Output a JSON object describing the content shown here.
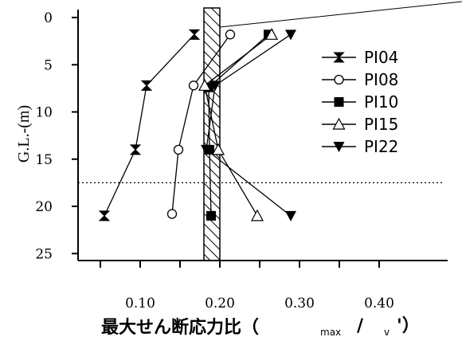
{
  "chart_data": {
    "type": "line",
    "title": "",
    "xlabel": "最大せん断応力比（",
    "xlabel_sub1": "max",
    "xlabel_slash": "/",
    "xlabel_sub2": "v",
    "xlabel_end": "'）",
    "ylabel": "G.L.-(m)",
    "xlim": [
      0.05,
      0.4
    ],
    "ylim": [
      0,
      26
    ],
    "y_inverted": true,
    "x_ticks": [
      0.1,
      0.2,
      0.3,
      0.4
    ],
    "x_tick_labels": [
      "0.10",
      "0.20",
      "0.30",
      "0.40"
    ],
    "y_ticks": [
      0,
      5,
      10,
      15,
      20,
      25
    ],
    "y_tick_labels": [
      "0",
      "5",
      "10",
      "15",
      "20",
      "25"
    ],
    "grid": false,
    "legend_position": "right",
    "hatched_band": [
      0.18,
      0.2
    ],
    "reference_depth": 17.5,
    "series": [
      {
        "name": "PI04",
        "marker": "bowtie",
        "points": [
          [
            0.168,
            1.8
          ],
          [
            0.108,
            7.2
          ],
          [
            0.094,
            14.0
          ],
          [
            0.055,
            21.0
          ]
        ]
      },
      {
        "name": "PI08",
        "marker": "circle-open",
        "points": [
          [
            0.213,
            1.8
          ],
          [
            0.167,
            7.2
          ],
          [
            0.148,
            14.0
          ],
          [
            0.14,
            20.8
          ]
        ]
      },
      {
        "name": "PI10",
        "marker": "square-filled",
        "points": [
          [
            0.261,
            1.8
          ],
          [
            0.186,
            7.4
          ],
          [
            0.187,
            14.0
          ],
          [
            0.189,
            21.0
          ]
        ]
      },
      {
        "name": "PI15",
        "marker": "triangle-up-open",
        "points": [
          [
            0.265,
            1.8
          ],
          [
            0.181,
            7.2
          ],
          [
            0.198,
            14.0
          ],
          [
            0.247,
            21.0
          ]
        ]
      },
      {
        "name": "PI22",
        "marker": "triangle-down-filled",
        "points": [
          [
            0.289,
            1.8
          ],
          [
            0.194,
            7.2
          ],
          [
            0.183,
            14.0
          ],
          [
            0.289,
            21.0
          ]
        ]
      }
    ]
  }
}
